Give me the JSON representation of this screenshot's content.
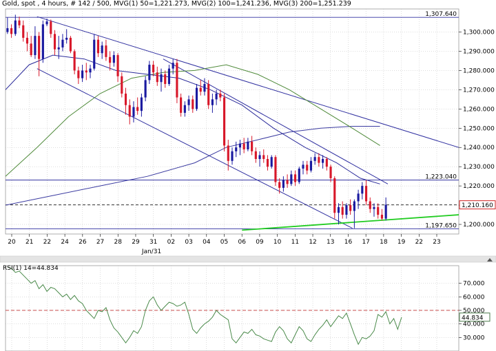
{
  "header": {
    "symbol": "Gold, spot",
    "timeframe": "4 hours",
    "bars": "# 142 / 500",
    "ma1": "MVG(1) 50=1,221.273",
    "ma2": "MVG(2) 100=1,241.236",
    "ma3": "MVG(3) 200=1,251.239"
  },
  "colors": {
    "up": "#1a1aa0",
    "down": "#d8182a",
    "ma1": "#2a2a9a",
    "ma2": "#4f8a3a",
    "ma3": "#3a3aa0",
    "channel": "#3030a0",
    "support": "#22cc22",
    "rsi": "#4a8a4a",
    "rsi_level": "#c03030",
    "grid": "#bbbbbb"
  },
  "chart_data": [
    {
      "type": "candlestick",
      "title": "Gold, spot , 4 hours",
      "ylim": [
        1195,
        1312
      ],
      "yticks": [
        1200,
        1210,
        1220,
        1230,
        1240,
        1250,
        1260,
        1270,
        1280,
        1290,
        1300
      ],
      "ytick_labels": [
        "1,200.000",
        "1,210.000",
        "1,220.000",
        "1,230.000",
        "1,240.000",
        "1,250.000",
        "1,260.000",
        "1,270.000",
        "1,280.000",
        "1,290.000",
        "1,300.000"
      ],
      "x_ticks": [
        "20",
        "21",
        "22",
        "24",
        "26",
        "27",
        "28",
        "29",
        "31",
        "02",
        "03",
        "04",
        "05",
        "06",
        "09",
        "10",
        "11",
        "12",
        "13",
        "16",
        "17",
        "18",
        "19",
        "22",
        "23"
      ],
      "x_sublabel": "Jan/31",
      "x_range": [
        0,
        115
      ],
      "candles": [
        [
          1300.0,
          1307.5,
          1299.0,
          1302.0
        ],
        [
          1302.0,
          1304.0,
          1297.0,
          1299.0
        ],
        [
          1299.0,
          1309.0,
          1298.0,
          1306.0
        ],
        [
          1306.0,
          1308.0,
          1302.0,
          1303.5
        ],
        [
          1303.5,
          1306.0,
          1295.0,
          1297.0
        ],
        [
          1297.0,
          1300.0,
          1290.0,
          1294.0
        ],
        [
          1294.0,
          1298.0,
          1287.0,
          1288.0
        ],
        [
          1288.0,
          1303.0,
          1286.0,
          1298.0
        ],
        [
          1298.0,
          1300.0,
          1277.0,
          1286.0
        ],
        [
          1286.0,
          1306.0,
          1284.0,
          1304.0
        ],
        [
          1304.0,
          1307.0,
          1303.0,
          1305.5
        ],
        [
          1305.5,
          1306.5,
          1297.0,
          1299.0
        ],
        [
          1299.0,
          1301.0,
          1288.0,
          1291.0
        ],
        [
          1291.0,
          1298.0,
          1286.0,
          1292.0
        ],
        [
          1292.0,
          1299.0,
          1290.0,
          1296.0
        ],
        [
          1296.0,
          1301.5,
          1294.0,
          1297.0
        ],
        [
          1297.0,
          1298.0,
          1289.0,
          1290.0
        ],
        [
          1290.0,
          1291.0,
          1278.0,
          1280.0
        ],
        [
          1280.0,
          1282.0,
          1273.0,
          1276.0
        ],
        [
          1276.0,
          1283.0,
          1274.0,
          1280.0
        ],
        [
          1280.0,
          1284.0,
          1275.0,
          1279.0
        ],
        [
          1279.0,
          1283.0,
          1276.0,
          1281.0
        ],
        [
          1281.0,
          1299.0,
          1280.0,
          1296.0
        ],
        [
          1296.0,
          1298.0,
          1287.0,
          1289.0
        ],
        [
          1289.0,
          1295.0,
          1286.0,
          1293.0
        ],
        [
          1293.0,
          1296.0,
          1285.0,
          1287.0
        ],
        [
          1287.0,
          1290.0,
          1280.0,
          1284.0
        ],
        [
          1284.0,
          1290.0,
          1282.0,
          1288.0
        ],
        [
          1288.0,
          1289.0,
          1274.0,
          1277.0
        ],
        [
          1277.0,
          1279.0,
          1266.0,
          1268.0
        ],
        [
          1268.0,
          1271.0,
          1257.0,
          1262.0
        ],
        [
          1262.0,
          1265.0,
          1252.0,
          1256.0
        ],
        [
          1256.0,
          1264.0,
          1253.0,
          1261.0
        ],
        [
          1261.0,
          1266.0,
          1257.0,
          1259.0
        ],
        [
          1259.0,
          1268.0,
          1256.0,
          1266.0
        ],
        [
          1266.0,
          1277.0,
          1264.0,
          1275.0
        ],
        [
          1275.0,
          1285.0,
          1273.0,
          1283.0
        ],
        [
          1283.0,
          1285.0,
          1277.0,
          1279.0
        ],
        [
          1279.0,
          1282.0,
          1272.0,
          1274.0
        ],
        [
          1274.0,
          1281.0,
          1269.0,
          1278.0
        ],
        [
          1278.0,
          1280.0,
          1271.0,
          1273.0
        ],
        [
          1273.0,
          1283.0,
          1272.0,
          1281.0
        ],
        [
          1281.0,
          1286.0,
          1278.0,
          1284.0
        ],
        [
          1284.0,
          1286.0,
          1263.0,
          1266.0
        ],
        [
          1266.0,
          1268.0,
          1256.0,
          1258.0
        ],
        [
          1258.0,
          1264.0,
          1256.0,
          1262.0
        ],
        [
          1262.0,
          1267.0,
          1259.0,
          1265.0
        ],
        [
          1265.0,
          1267.0,
          1258.0,
          1260.0
        ],
        [
          1260.0,
          1273.0,
          1259.0,
          1271.0
        ],
        [
          1271.0,
          1275.0,
          1267.0,
          1269.0
        ],
        [
          1269.0,
          1276.0,
          1267.0,
          1273.0
        ],
        [
          1273.0,
          1275.0,
          1260.0,
          1262.0
        ],
        [
          1262.0,
          1268.0,
          1258.0,
          1265.0
        ],
        [
          1265.0,
          1270.0,
          1262.0,
          1268.0
        ],
        [
          1268.0,
          1270.0,
          1264.0,
          1266.0
        ],
        [
          1266.0,
          1268.0,
          1238.0,
          1241.0
        ],
        [
          1241.0,
          1244.0,
          1228.0,
          1233.0
        ],
        [
          1233.0,
          1240.0,
          1231.0,
          1238.0
        ],
        [
          1238.0,
          1243.0,
          1235.0,
          1240.0
        ],
        [
          1240.0,
          1244.0,
          1236.0,
          1242.0
        ],
        [
          1242.0,
          1245.0,
          1237.0,
          1239.0
        ],
        [
          1239.0,
          1245.0,
          1238.0,
          1243.0
        ],
        [
          1243.0,
          1246.0,
          1236.0,
          1238.0
        ],
        [
          1238.0,
          1240.0,
          1232.0,
          1234.0
        ],
        [
          1234.0,
          1238.0,
          1230.0,
          1236.0
        ],
        [
          1236.0,
          1239.0,
          1232.0,
          1234.0
        ],
        [
          1234.0,
          1236.0,
          1228.0,
          1230.0
        ],
        [
          1230.0,
          1236.0,
          1229.0,
          1235.0
        ],
        [
          1235.0,
          1236.0,
          1220.0,
          1222.0
        ],
        [
          1222.0,
          1224.0,
          1216.0,
          1219.0
        ],
        [
          1219.0,
          1225.0,
          1217.0,
          1223.0
        ],
        [
          1223.0,
          1226.0,
          1219.0,
          1221.0
        ],
        [
          1221.0,
          1228.0,
          1220.0,
          1226.0
        ],
        [
          1226.0,
          1228.0,
          1220.0,
          1222.0
        ],
        [
          1222.0,
          1230.0,
          1221.0,
          1229.0
        ],
        [
          1229.0,
          1233.0,
          1226.0,
          1231.0
        ],
        [
          1231.0,
          1233.0,
          1226.0,
          1228.0
        ],
        [
          1228.0,
          1235.0,
          1227.0,
          1233.0
        ],
        [
          1233.0,
          1237.0,
          1231.0,
          1235.0
        ],
        [
          1235.0,
          1237.0,
          1230.0,
          1232.0
        ],
        [
          1232.0,
          1236.0,
          1229.0,
          1234.0
        ],
        [
          1234.0,
          1235.0,
          1228.0,
          1230.0
        ],
        [
          1230.0,
          1231.0,
          1222.0,
          1224.0
        ],
        [
          1224.0,
          1225.0,
          1203.0,
          1206.0
        ],
        [
          1206.0,
          1211.0,
          1200.0,
          1209.0
        ],
        [
          1209.0,
          1212.0,
          1203.0,
          1205.0
        ],
        [
          1205.0,
          1211.0,
          1203.0,
          1210.0
        ],
        [
          1210.0,
          1213.0,
          1205.0,
          1207.0
        ],
        [
          1207.0,
          1213.0,
          1198.0,
          1212.0
        ],
        [
          1212.0,
          1218.0,
          1208.0,
          1216.0
        ],
        [
          1216.0,
          1222.0,
          1213.0,
          1220.0
        ],
        [
          1220.0,
          1223.0,
          1210.0,
          1212.0
        ],
        [
          1212.0,
          1214.0,
          1206.0,
          1208.0
        ],
        [
          1208.0,
          1211.0,
          1204.0,
          1209.0
        ],
        [
          1209.0,
          1211.0,
          1203.0,
          1205.0
        ],
        [
          1205.0,
          1208.0,
          1202.0,
          1203.0
        ],
        [
          1203.0,
          1214.0,
          1202.0,
          1210.2
        ]
      ],
      "ma50": [
        [
          0,
          1270
        ],
        [
          6,
          1283
        ],
        [
          12,
          1288
        ],
        [
          20,
          1286
        ],
        [
          28,
          1280
        ],
        [
          36,
          1278
        ],
        [
          44,
          1276
        ],
        [
          52,
          1270
        ],
        [
          60,
          1262
        ],
        [
          68,
          1250
        ],
        [
          76,
          1240
        ],
        [
          84,
          1232
        ],
        [
          90,
          1224
        ],
        [
          95,
          1221
        ]
      ],
      "ma100": [
        [
          0,
          1225
        ],
        [
          8,
          1240
        ],
        [
          16,
          1256
        ],
        [
          24,
          1268
        ],
        [
          32,
          1276
        ],
        [
          40,
          1279
        ],
        [
          48,
          1280
        ],
        [
          56,
          1283
        ],
        [
          64,
          1278
        ],
        [
          72,
          1270
        ],
        [
          80,
          1260
        ],
        [
          88,
          1250
        ],
        [
          95,
          1241
        ]
      ],
      "ma200": [
        [
          0,
          1210
        ],
        [
          12,
          1215
        ],
        [
          24,
          1220
        ],
        [
          36,
          1225
        ],
        [
          48,
          1232
        ],
        [
          56,
          1240
        ],
        [
          64,
          1244
        ],
        [
          72,
          1248
        ],
        [
          80,
          1250
        ],
        [
          88,
          1251
        ],
        [
          95,
          1251
        ]
      ],
      "channel_upper": [
        [
          8,
          1308
        ],
        [
          115,
          1240
        ]
      ],
      "channel_lower": [
        [
          8,
          1281
        ],
        [
          88,
          1198
        ]
      ],
      "resistance": [
        [
          40,
          1286
        ],
        [
          97,
          1221
        ]
      ],
      "support": [
        [
          60,
          1197
        ],
        [
          115,
          1205
        ]
      ],
      "hlines": [
        {
          "y": 1307.64,
          "label": "1,307.640",
          "style": "solid"
        },
        {
          "y": 1223.04,
          "label": "1,223.040",
          "style": "solid"
        },
        {
          "y": 1197.65,
          "label": "1,197.650",
          "style": "solid"
        },
        {
          "y": 1210.16,
          "label": "1,210.160",
          "style": "dashed"
        }
      ],
      "last_price_label": "1,210.160"
    },
    {
      "type": "line",
      "title": "RSI(1) 14=44.834",
      "ylim": [
        20,
        83
      ],
      "yticks": [
        30,
        40,
        50,
        60,
        70
      ],
      "ytick_labels": [
        "30.000",
        "40.000",
        "50.000",
        "60.000",
        "70.000"
      ],
      "level": 50,
      "last_value_label": "44.834",
      "values": [
        82,
        81,
        78,
        79,
        76,
        73,
        70,
        72,
        66,
        69,
        64,
        67,
        66,
        63,
        60,
        62,
        58,
        61,
        57,
        55,
        50,
        47,
        44,
        50,
        49,
        52,
        43,
        37,
        34,
        30,
        26,
        30,
        35,
        33,
        38,
        50,
        57,
        60,
        54,
        50,
        53,
        56,
        55,
        53,
        54,
        56,
        47,
        36,
        33,
        37,
        40,
        42,
        45,
        50,
        47,
        45,
        43,
        29,
        26,
        30,
        34,
        33,
        36,
        32,
        31,
        29,
        28,
        27,
        34,
        38,
        35,
        29,
        26,
        32,
        38,
        35,
        29,
        27,
        32,
        36,
        39,
        43,
        38,
        42,
        46,
        44,
        48,
        40,
        32,
        25,
        30,
        29,
        31,
        35,
        47,
        45,
        49,
        40,
        44,
        36,
        45
      ]
    }
  ]
}
